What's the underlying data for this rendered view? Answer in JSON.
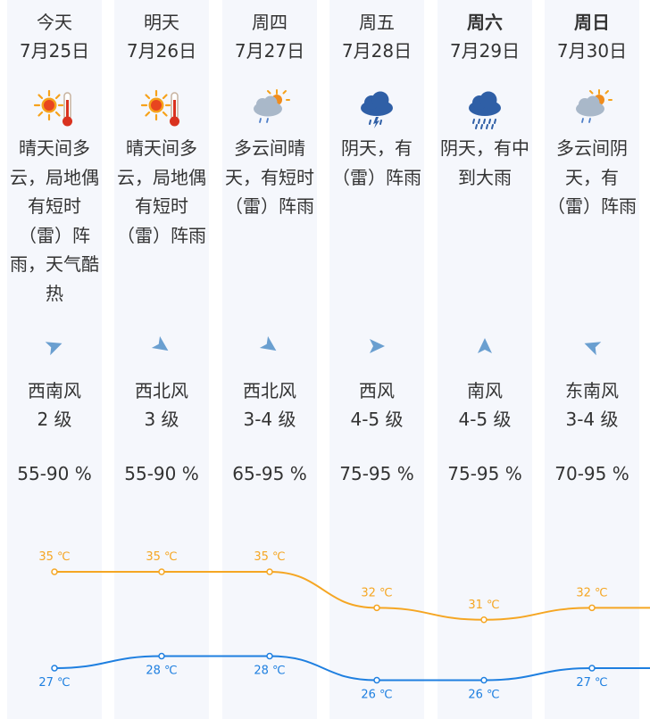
{
  "days": [
    {
      "day": "今天",
      "date": "7月25日",
      "icon": "sunny-hot-icon",
      "desc": "晴天间多云，局地偶有短时（雷）阵雨，天气酷热",
      "wind_icon": "wind-arrow-southwest-icon",
      "wind_dir": "西南风",
      "wind_level": "2 级",
      "humidity": "55-90 %"
    },
    {
      "day": "明天",
      "date": "7月26日",
      "icon": "sunny-hot-icon",
      "desc": "晴天间多云，局地偶有短时（雷）阵雨",
      "wind_icon": "wind-arrow-northwest-icon",
      "wind_dir": "西北风",
      "wind_level": "3 级",
      "humidity": "55-90 %"
    },
    {
      "day": "周四",
      "date": "7月27日",
      "icon": "cloudy-sun-rain-icon",
      "desc": "多云间晴天，有短时（雷）阵雨",
      "wind_icon": "wind-arrow-northwest-icon",
      "wind_dir": "西北风",
      "wind_level": "3-4 级",
      "humidity": "65-95 %"
    },
    {
      "day": "周五",
      "date": "7月28日",
      "icon": "thunder-shower-icon",
      "desc": "阴天，有（雷）阵雨",
      "wind_icon": "wind-arrow-west-icon",
      "wind_dir": "西风",
      "wind_level": "4-5 级",
      "humidity": "75-95 %"
    },
    {
      "day": "周六",
      "date": "7月29日",
      "icon": "heavy-rain-icon",
      "desc": "阴天，有中到大雨",
      "wind_icon": "wind-arrow-south-icon",
      "wind_dir": "南风",
      "wind_level": "4-5 级",
      "humidity": "75-95 %"
    },
    {
      "day": "周日",
      "date": "7月30日",
      "icon": "cloudy-sun-rain-icon",
      "desc": "多云间阴天，有（雷）阵雨",
      "wind_icon": "wind-arrow-southeast-icon",
      "wind_dir": "东南风",
      "wind_level": "3-4 级",
      "humidity": "70-95 %"
    }
  ],
  "chart_data": {
    "type": "line",
    "unit": "°C",
    "series": [
      {
        "values": [
          35,
          35,
          35,
          32,
          31,
          32
        ],
        "labels": [
          "35 ℃",
          "35 ℃",
          "35 ℃",
          "32 ℃",
          "31 ℃",
          "32 ℃"
        ],
        "color": "#f5a623"
      },
      {
        "values": [
          27,
          28,
          28,
          26,
          26,
          27
        ],
        "labels": [
          "27 ℃",
          "28 ℃",
          "28 ℃",
          "26 ℃",
          "26 ℃",
          "27 ℃"
        ],
        "color": "#1e7fe0"
      }
    ]
  },
  "colors": {
    "column_bg": "#f5f7fc",
    "text": "#333333",
    "high": "#f5a623",
    "low": "#1e7fe0",
    "wind_arrow": "#6a9fd0"
  }
}
